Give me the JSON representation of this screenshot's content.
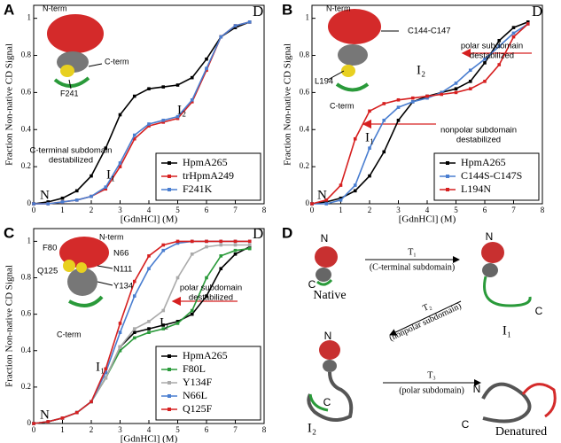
{
  "chart_data": [
    {
      "type": "line",
      "panel": "A",
      "xlabel": "[GdnHCl] (M)",
      "ylabel": "Fraction Non-native CD Signal",
      "x": [
        0,
        0.5,
        1,
        1.5,
        2,
        2.5,
        3,
        3.5,
        4,
        4.5,
        5,
        5.5,
        6,
        6.5,
        7,
        7.5
      ],
      "xlim": [
        0,
        8
      ],
      "xticks": [
        0,
        1,
        2,
        3,
        4,
        5,
        6,
        7,
        8
      ],
      "ylim": [
        0,
        1.07
      ],
      "yticks": [
        0,
        0.2,
        0.4,
        0.6,
        0.8,
        1
      ],
      "legend": "lower right",
      "series": [
        {
          "name": "HpmA265",
          "color": "#000000",
          "values": [
            0,
            0.01,
            0.03,
            0.07,
            0.15,
            0.3,
            0.48,
            0.58,
            0.62,
            0.63,
            0.64,
            0.68,
            0.78,
            0.9,
            0.95,
            0.98
          ]
        },
        {
          "name": "trHpmA249",
          "color": "#d62020",
          "values": [
            0,
            0,
            0.01,
            0.02,
            0.04,
            0.08,
            0.2,
            0.35,
            0.42,
            0.44,
            0.46,
            0.55,
            0.72,
            0.9,
            0.96,
            0.98
          ]
        },
        {
          "name": "F241K",
          "color": "#4a7ed0",
          "values": [
            0,
            0,
            0.01,
            0.02,
            0.04,
            0.09,
            0.22,
            0.37,
            0.43,
            0.45,
            0.47,
            0.56,
            0.73,
            0.9,
            0.96,
            0.98
          ]
        }
      ],
      "annotations": [
        "N-term",
        "C-term",
        "F241",
        "D",
        "I₂",
        "I₁",
        "N",
        "C-terminal subdomain",
        "destabilized"
      ]
    },
    {
      "type": "line",
      "panel": "B",
      "xlabel": "[GdnHCl] (M)",
      "ylabel": "Fraction Non-native CD Signal",
      "x": [
        0,
        0.5,
        1,
        1.5,
        2,
        2.5,
        3,
        3.5,
        4,
        4.5,
        5,
        5.5,
        6,
        6.5,
        7,
        7.5
      ],
      "xlim": [
        0,
        8
      ],
      "xticks": [
        0,
        1,
        2,
        3,
        4,
        5,
        6,
        7,
        8
      ],
      "ylim": [
        0,
        1.07
      ],
      "yticks": [
        0,
        0.2,
        0.4,
        0.6,
        0.8,
        1
      ],
      "legend": "lower right",
      "series": [
        {
          "name": "HpmA265",
          "color": "#000000",
          "values": [
            0,
            0.01,
            0.03,
            0.07,
            0.15,
            0.28,
            0.45,
            0.55,
            0.58,
            0.6,
            0.62,
            0.66,
            0.76,
            0.88,
            0.95,
            0.98
          ]
        },
        {
          "name": "C144S-C147S",
          "color": "#4a7ed0",
          "values": [
            0,
            0,
            0.02,
            0.1,
            0.3,
            0.45,
            0.52,
            0.55,
            0.57,
            0.6,
            0.65,
            0.72,
            0.78,
            0.85,
            0.92,
            0.97
          ]
        },
        {
          "name": "L194N",
          "color": "#d62020",
          "values": [
            0,
            0.02,
            0.1,
            0.35,
            0.5,
            0.54,
            0.56,
            0.57,
            0.58,
            0.59,
            0.6,
            0.62,
            0.66,
            0.75,
            0.9,
            0.97
          ]
        }
      ],
      "annotations": [
        "N-term",
        "C144-C147",
        "L194",
        "C-term",
        "polar subdomain",
        "destabilized",
        "nonpolar subdomain",
        "destabilized",
        "I₂",
        "I₁",
        "D",
        "N"
      ]
    },
    {
      "type": "line",
      "panel": "C",
      "xlabel": "[GdnHCl] (M)",
      "ylabel": "Fraction Non-native CD Signal",
      "x": [
        0,
        0.5,
        1,
        1.5,
        2,
        2.5,
        3,
        3.5,
        4,
        4.5,
        5,
        5.5,
        6,
        6.5,
        7,
        7.5
      ],
      "xlim": [
        0,
        8
      ],
      "xticks": [
        0,
        1,
        2,
        3,
        4,
        5,
        6,
        7,
        8
      ],
      "ylim": [
        0,
        1.07
      ],
      "yticks": [
        0,
        0.2,
        0.4,
        0.6,
        0.8,
        1
      ],
      "legend": "lower right",
      "series": [
        {
          "name": "HpmA265",
          "color": "#000000",
          "values": [
            0,
            0.01,
            0.03,
            0.06,
            0.12,
            0.25,
            0.42,
            0.5,
            0.52,
            0.54,
            0.56,
            0.6,
            0.7,
            0.85,
            0.93,
            0.97
          ]
        },
        {
          "name": "F80L",
          "color": "#2a9a3a",
          "values": [
            0,
            0.01,
            0.03,
            0.06,
            0.12,
            0.25,
            0.4,
            0.47,
            0.5,
            0.52,
            0.55,
            0.62,
            0.8,
            0.92,
            0.95,
            0.96
          ]
        },
        {
          "name": "Y134F",
          "color": "#aaaaaa",
          "values": [
            0,
            0.01,
            0.03,
            0.06,
            0.12,
            0.25,
            0.42,
            0.52,
            0.56,
            0.62,
            0.8,
            0.93,
            0.97,
            0.98,
            0.98,
            0.98
          ]
        },
        {
          "name": "N66L",
          "color": "#4a7ed0",
          "values": [
            0,
            0.01,
            0.03,
            0.06,
            0.12,
            0.28,
            0.5,
            0.7,
            0.85,
            0.95,
            0.99,
            1,
            1,
            1,
            1,
            1
          ]
        },
        {
          "name": "Q125F",
          "color": "#d62020",
          "values": [
            0,
            0.01,
            0.03,
            0.06,
            0.12,
            0.3,
            0.55,
            0.78,
            0.92,
            0.98,
            1,
            1,
            1,
            1,
            1,
            1
          ]
        }
      ],
      "annotations": [
        "F80",
        "N-term",
        "N66",
        "N111",
        "Q125",
        "Y134",
        "C-term",
        "polar subdomain",
        "destabilized",
        "D",
        "I₂",
        "I₁",
        "N"
      ]
    }
  ],
  "diagram": {
    "panel": "D",
    "states": [
      {
        "label": "Native",
        "n": "N",
        "c": "C"
      },
      {
        "label": "I₁",
        "n": "N",
        "c": "C"
      },
      {
        "label": "I₂",
        "n": "N",
        "c": "C"
      },
      {
        "label": "Denatured",
        "n": "N",
        "c": "C"
      }
    ],
    "transitions": [
      {
        "label": "T₁",
        "note": "(C-terminal subdomain)"
      },
      {
        "label": "T₂",
        "note": "(nonpolar subdomain)"
      },
      {
        "label": "T₃",
        "note": "(polar subdomain)"
      }
    ]
  }
}
